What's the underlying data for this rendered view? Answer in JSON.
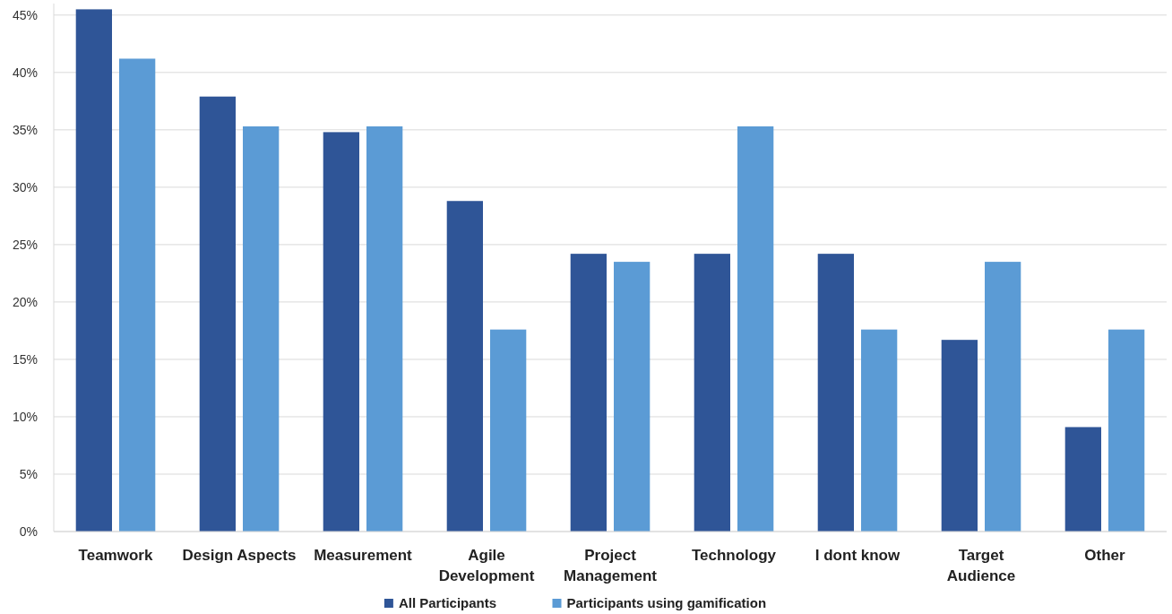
{
  "chart_data": {
    "type": "bar",
    "categories": [
      "Teamwork",
      "Design Aspects",
      "Measurement",
      "Agile Development",
      "Project Management",
      "Technology",
      "I dont know",
      "Target Audience",
      "Other"
    ],
    "series": [
      {
        "name": "All Participants",
        "color": "#2f5597",
        "values": [
          45.5,
          37.9,
          34.8,
          28.8,
          24.2,
          24.2,
          24.2,
          16.7,
          9.1
        ]
      },
      {
        "name": "Participants using gamification",
        "color": "#5b9bd5",
        "values": [
          41.2,
          35.3,
          35.3,
          17.6,
          23.5,
          35.3,
          17.6,
          23.5,
          17.6
        ]
      }
    ],
    "ylim": [
      0,
      46
    ],
    "yticks": [
      {
        "value": 0,
        "label": "0%"
      },
      {
        "value": 5,
        "label": "5%"
      },
      {
        "value": 10,
        "label": "10%"
      },
      {
        "value": 15,
        "label": "15%"
      },
      {
        "value": 20,
        "label": "20%"
      },
      {
        "value": 25,
        "label": "25%"
      },
      {
        "value": 30,
        "label": "30%"
      },
      {
        "value": 35,
        "label": "35%"
      },
      {
        "value": 40,
        "label": "40%"
      },
      {
        "value": 45,
        "label": "45%"
      }
    ],
    "grid": "y",
    "legend": "bottom"
  }
}
